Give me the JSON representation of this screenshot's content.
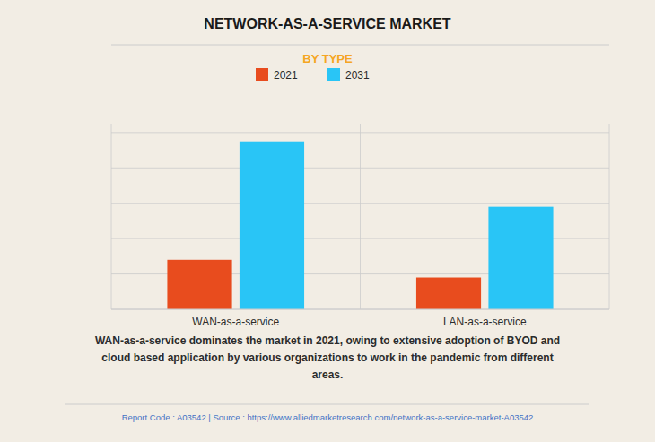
{
  "chart_data": {
    "type": "bar",
    "title": "NETWORK-AS-A-SERVICE MARKET",
    "subtitle": "BY TYPE",
    "categories": [
      "WAN-as-a-service",
      "LAN-as-a-service"
    ],
    "series": [
      {
        "name": "2021",
        "color": "#E84C1E",
        "values": [
          28,
          18
        ]
      },
      {
        "name": "2031",
        "color": "#29C5F6",
        "values": [
          95,
          58
        ]
      }
    ],
    "ylim": [
      0,
      105
    ],
    "yticks": [
      0,
      20,
      40,
      60,
      80,
      100
    ],
    "grid": true,
    "tick_labels": "x",
    "legend": "top",
    "annotations": [
      "WAN-as-a-service dominates the market in 2021, owing to extensive adoption of BYOD and\ncloud based application by various organizations to work in the pandemic from different\nareas.",
      "Report Code : A03542  |  Source : https://www.alliedmarketresearch.com/network-as-a-service-market-A03542"
    ]
  }
}
